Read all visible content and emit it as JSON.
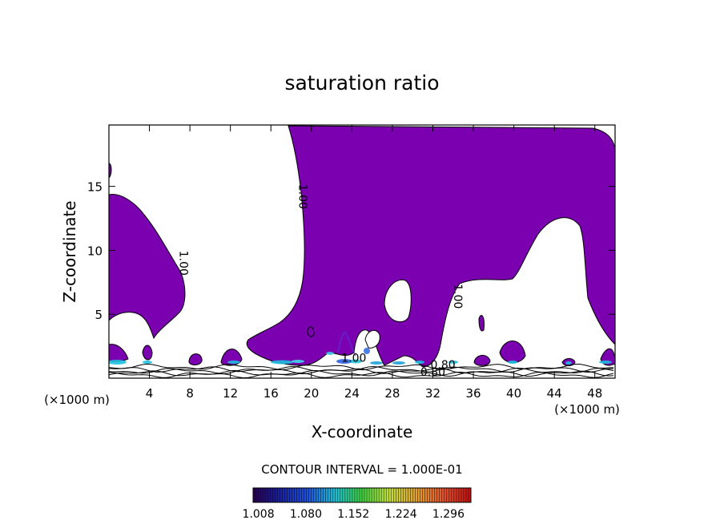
{
  "chart_data": {
    "type": "contour",
    "title": "saturation ratio",
    "xlabel": "X-coordinate",
    "ylabel": "Z-coordinate",
    "x_unit": "(×1000 m)",
    "y_unit": "(×1000 m)",
    "xlim": [
      0,
      50
    ],
    "ylim": [
      0,
      19.8
    ],
    "xticks": [
      4,
      8,
      12,
      16,
      20,
      24,
      28,
      32,
      36,
      40,
      44,
      48
    ],
    "yticks": [
      5,
      10,
      15
    ],
    "contour_interval": "CONTOUR INTERVAL = 1.000E-01",
    "contour_labels": [
      {
        "text": "1.00",
        "x": 18.8,
        "y": 14.2
      },
      {
        "text": "1.00",
        "x": 7.0,
        "y": 9.0
      },
      {
        "text": "1.00",
        "x": 34.1,
        "y": 6.4
      },
      {
        "text": "1.00",
        "x": 24.2,
        "y": 1.3
      },
      {
        "text": "0.80",
        "x": 33.0,
        "y": 0.75
      },
      {
        "text": "0.80",
        "x": 32.0,
        "y": 0.2
      }
    ],
    "colorbar": {
      "ticks": [
        "1.008",
        "1.080",
        "1.152",
        "1.224",
        "1.296"
      ],
      "range": [
        1.0,
        1.33
      ],
      "colormap": "purple-blue-cyan-green-yellow-orange-red"
    },
    "fill_color": "#7a00b0",
    "grid": false,
    "legend": "colorbar-bottom"
  },
  "colors": {
    "supersaturated_fill": "#7a00b0",
    "contour_line": "#000000",
    "background": "#ffffff"
  }
}
